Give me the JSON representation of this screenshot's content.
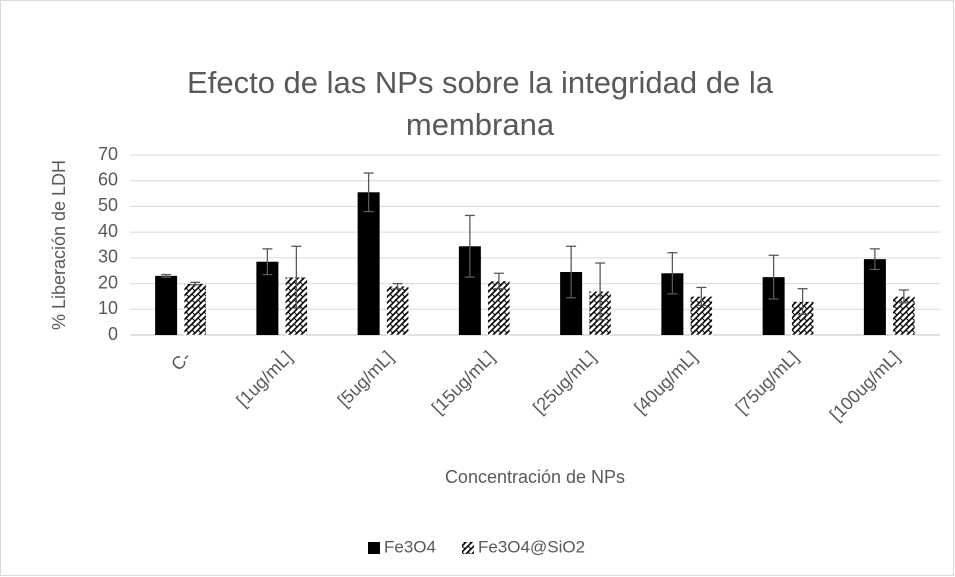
{
  "chart_data": {
    "type": "bar",
    "title": "Efecto de las NPs sobre la integridad de la membrana",
    "x_label": "Concentración de NPs",
    "y_label": "% Liberación de LDH",
    "categories": [
      "C-",
      "[1ug/mL]",
      "[5ug/mL]",
      "[15ug/mL]",
      "[25ug/mL]",
      "[40ug/mL]",
      "[75ug/mL]",
      "[100ug/mL]"
    ],
    "series": [
      {
        "name": "Fe3O4",
        "color": "#000000",
        "values": [
          23,
          28.5,
          55.5,
          34.5,
          24.5,
          24,
          22.5,
          29.5
        ],
        "errors": [
          0.5,
          5,
          7.5,
          12,
          10,
          8,
          8.5,
          4
        ]
      },
      {
        "name": "Fe3O4@SiO2",
        "color": "#000000",
        "pattern": "hatch",
        "values": [
          20,
          22.5,
          19,
          21,
          17,
          15,
          13,
          15
        ],
        "errors": [
          0.5,
          12,
          1,
          3,
          11,
          3.5,
          5,
          2.5
        ]
      }
    ],
    "ylim": [
      0,
      70
    ],
    "yticks": [
      0,
      10,
      20,
      30,
      40,
      50,
      60,
      70
    ],
    "grid": true,
    "legend": "bottom"
  }
}
